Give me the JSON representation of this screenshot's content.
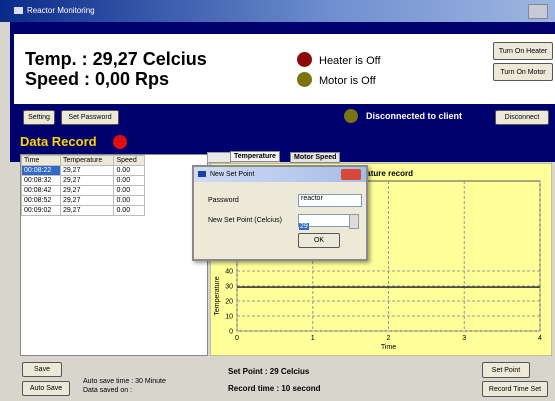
{
  "window": {
    "title": "Reactor Monitoring"
  },
  "status": {
    "temperature": "Temp. : 29,27 Celcius",
    "speed": "Speed : 0,00 Rps",
    "heater": "Heater is Off",
    "motor": "Motor is Off",
    "connection": "Disconnected to client"
  },
  "buttons": {
    "turn_on_heater": "Turn On Heater",
    "turn_on_motor": "Turn On Motor",
    "setting": "Setting",
    "set_password": "Set Password",
    "disconnect": "Disconnect",
    "save": "Save",
    "auto_save": "Auto Save",
    "set_point": "Set Point",
    "record_time_set": "Record Time Set"
  },
  "data_record": {
    "title": "Data Record",
    "columns": [
      "Time",
      "Temperature",
      "Speed"
    ],
    "rows": [
      [
        "00:08:22",
        "29,27",
        "0.00"
      ],
      [
        "00:08:32",
        "29,27",
        "0.00"
      ],
      [
        "00:08:42",
        "29,27",
        "0.00"
      ],
      [
        "00:08:52",
        "29,27",
        "0.00"
      ],
      [
        "00:09:02",
        "29,27",
        "0.00"
      ]
    ]
  },
  "tabs": [
    "Temperature",
    "Motor Speed"
  ],
  "chart_data": {
    "type": "line",
    "title": "Temperature record",
    "x_label": "Time",
    "y_label": "Temperature",
    "x": [
      0,
      4
    ],
    "values": [
      29.27,
      29.27
    ],
    "color": "#333333",
    "xlim": [
      0,
      4
    ],
    "xticks": [
      0,
      1,
      2,
      3,
      4
    ],
    "ylim": [
      0,
      100
    ],
    "yticks": [
      0,
      10,
      20,
      30,
      40
    ],
    "grid": true
  },
  "footer": {
    "auto_save_time": "Auto save time : 30 Minute",
    "data_saved_on": "Data saved on :",
    "set_point": "Set Point : 29 Celcius",
    "record_time": "Record time : 10 second"
  },
  "dialog": {
    "title": "New Set Point",
    "password_label": "Password",
    "password": "reactor",
    "set_point_label": "New Set Point (Celcius)",
    "set_point": "29",
    "ok": "OK"
  }
}
